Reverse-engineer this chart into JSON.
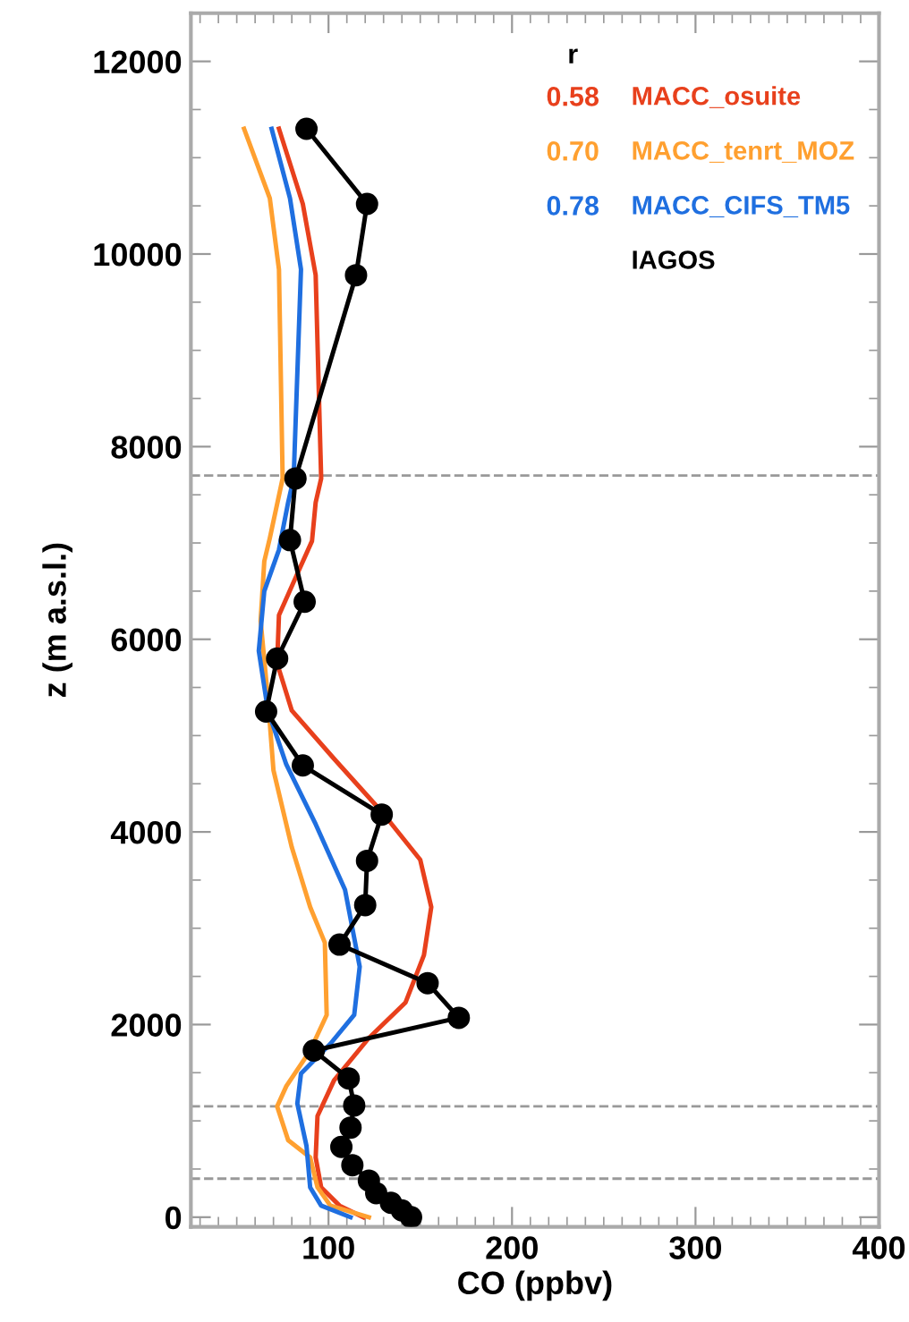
{
  "chart_data": {
    "type": "line",
    "xlabel": "CO (ppbv)",
    "ylabel": "z (m a.s.l.)",
    "legend_title": "r",
    "xlim": [
      25,
      400
    ],
    "xticks": [
      100,
      200,
      300,
      400
    ],
    "ylim": [
      -100,
      12500
    ],
    "yticks": [
      0,
      2000,
      4000,
      6000,
      8000,
      10000,
      12000
    ],
    "grid": false,
    "legend": "top right",
    "annotations": [
      "0.58",
      "0.70",
      "0.78"
    ],
    "ref_lines": [
      {
        "axis": "y",
        "value": 7700,
        "color": "#999999",
        "line_style": "dashed"
      },
      {
        "axis": "y",
        "value": 1150,
        "color": "#999999",
        "line_style": "dashed"
      },
      {
        "axis": "y",
        "value": 400,
        "color": "#999999",
        "line_style": "dashed"
      }
    ],
    "series": [
      {
        "name": "MACC_osuite",
        "color": "#e8401c",
        "marker": "none",
        "x": [
          73,
          86,
          93,
          96,
          93,
          91,
          83,
          73,
          72,
          80,
          103,
          129,
          150,
          156,
          152,
          142,
          122,
          103,
          94,
          93,
          96,
          106,
          119
        ],
        "values": [
          11300,
          10520,
          9780,
          7670,
          7420,
          7020,
          6680,
          6250,
          5750,
          5260,
          4760,
          4210,
          3710,
          3220,
          2720,
          2230,
          1860,
          1420,
          1050,
          620,
          310,
          120,
          0
        ]
      },
      {
        "name": "MACC_tenrt_MOZ",
        "color": "#ffa030",
        "marker": "none",
        "x": [
          54,
          68,
          73,
          75,
          68,
          65,
          63,
          67,
          70,
          80,
          90,
          98,
          99,
          90,
          77,
          72,
          78,
          90,
          94,
          101,
          122
        ],
        "values": [
          11300,
          10580,
          9840,
          7670,
          7050,
          6810,
          6190,
          5380,
          4640,
          3840,
          3220,
          2850,
          2100,
          1730,
          1360,
          1150,
          800,
          620,
          310,
          120,
          0
        ]
      },
      {
        "name": "MACC_CIFS_TM5",
        "color": "#1f6fe0",
        "marker": "none",
        "x": [
          69,
          79,
          85,
          81,
          78,
          73,
          65,
          62,
          67,
          77,
          93,
          109,
          117,
          114,
          101,
          85,
          83,
          88,
          90,
          96,
          112
        ],
        "values": [
          11300,
          10580,
          9840,
          7670,
          7420,
          6930,
          6500,
          5880,
          5260,
          4700,
          4080,
          3400,
          2600,
          2100,
          1800,
          1490,
          1180,
          740,
          310,
          120,
          0
        ]
      },
      {
        "name": "IAGOS",
        "color": "#000000",
        "marker": "circle",
        "x": [
          88,
          121,
          115,
          82,
          79,
          87,
          72,
          66,
          86,
          129,
          121,
          120,
          106,
          154,
          171,
          92,
          111,
          114,
          112,
          107,
          113,
          122,
          126,
          134,
          140,
          145
        ],
        "values": [
          11300,
          10520,
          9780,
          7670,
          7030,
          6390,
          5800,
          5250,
          4690,
          4180,
          3700,
          3240,
          2830,
          2430,
          2070,
          1730,
          1440,
          1160,
          930,
          730,
          540,
          380,
          250,
          150,
          70,
          0
        ]
      }
    ]
  }
}
